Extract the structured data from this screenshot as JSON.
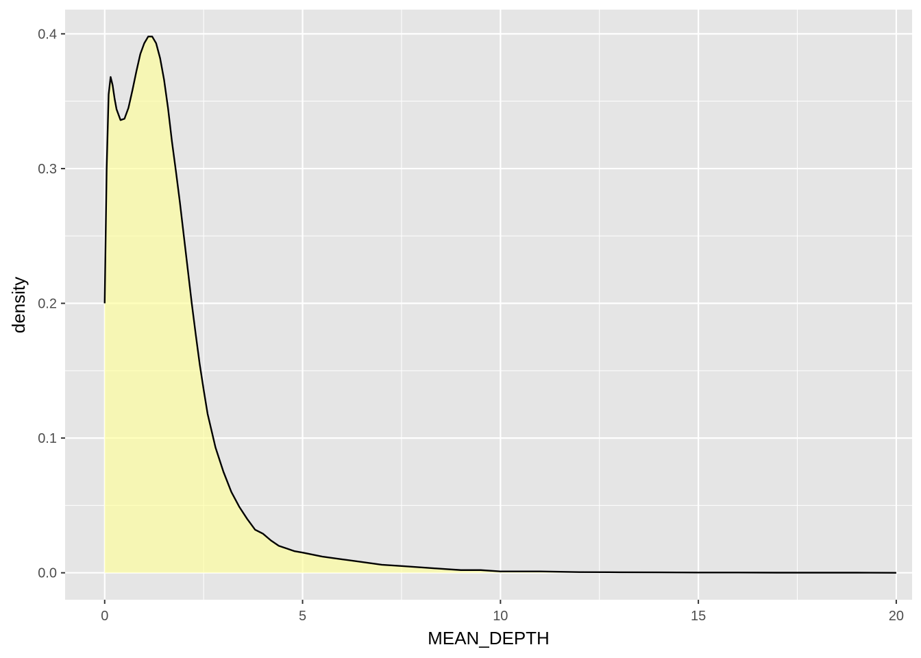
{
  "chart_data": {
    "type": "area",
    "subtype": "density",
    "title": "",
    "xlabel": "MEAN_DEPTH",
    "ylabel": "density",
    "xlim": [
      -1,
      20.4
    ],
    "ylim": [
      -0.02,
      0.418
    ],
    "x_ticks": [
      0,
      5,
      10,
      15,
      20
    ],
    "x_tick_labels": [
      "0",
      "5",
      "10",
      "15",
      "20"
    ],
    "y_ticks": [
      0.0,
      0.1,
      0.2,
      0.3,
      0.4
    ],
    "y_tick_labels": [
      "0.0",
      "0.1",
      "0.2",
      "0.3",
      "0.4"
    ],
    "grid": true,
    "legend": "none",
    "colors": {
      "panel_background": "#e5e5e5",
      "grid": "#ffffff",
      "fill": "#ffff99",
      "fill_opacity": 0.65,
      "line": "#000000"
    },
    "series": [
      {
        "x": [
          0.0,
          0.05,
          0.1,
          0.15,
          0.2,
          0.25,
          0.3,
          0.4,
          0.5,
          0.6,
          0.7,
          0.8,
          0.9,
          1.0,
          1.1,
          1.2,
          1.3,
          1.4,
          1.5,
          1.6,
          1.7,
          1.8,
          1.9,
          2.0,
          2.1,
          2.2,
          2.3,
          2.4,
          2.5,
          2.6,
          2.8,
          3.0,
          3.2,
          3.4,
          3.6,
          3.8,
          4.0,
          4.2,
          4.4,
          4.6,
          4.8,
          5.0,
          5.5,
          6.0,
          6.5,
          7.0,
          7.5,
          8.0,
          8.5,
          9.0,
          9.5,
          10.0,
          11.0,
          12.0,
          13.0,
          14.0,
          15.0,
          16.0,
          17.0,
          18.0,
          19.0,
          20.0
        ],
        "y": [
          0.2,
          0.3,
          0.355,
          0.368,
          0.362,
          0.352,
          0.344,
          0.336,
          0.337,
          0.345,
          0.358,
          0.372,
          0.385,
          0.393,
          0.398,
          0.398,
          0.393,
          0.382,
          0.366,
          0.345,
          0.32,
          0.298,
          0.275,
          0.25,
          0.225,
          0.2,
          0.177,
          0.155,
          0.136,
          0.118,
          0.093,
          0.075,
          0.06,
          0.049,
          0.04,
          0.032,
          0.029,
          0.024,
          0.02,
          0.018,
          0.016,
          0.015,
          0.012,
          0.01,
          0.008,
          0.006,
          0.005,
          0.004,
          0.003,
          0.002,
          0.002,
          0.001,
          0.001,
          0.0005,
          0.0004,
          0.0003,
          0.0002,
          0.0002,
          0.0001,
          0.0001,
          0.0001,
          0.0
        ]
      }
    ]
  }
}
